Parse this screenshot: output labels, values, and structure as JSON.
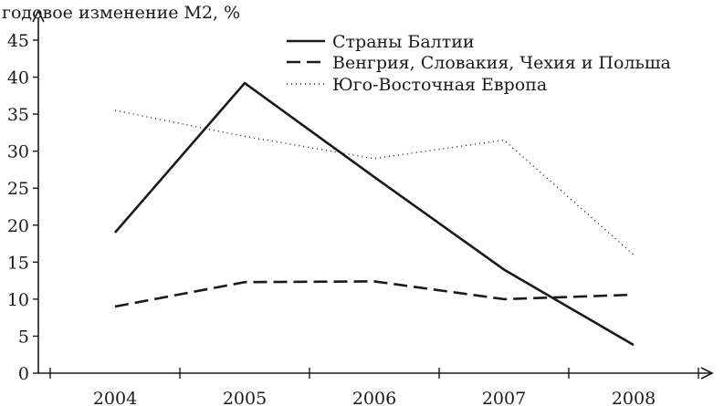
{
  "chart_data": {
    "type": "line",
    "ylabel": "годовое изменение М2, %",
    "xlabel": "",
    "categories": [
      "2004",
      "2005",
      "2006",
      "2007",
      "2008"
    ],
    "ylim": [
      0,
      45
    ],
    "yticks": [
      0,
      5,
      10,
      15,
      20,
      25,
      30,
      35,
      40,
      45
    ],
    "grid": false,
    "legend_position": "top-right",
    "series": [
      {
        "name": "Страны Балтии",
        "style": "solid",
        "color": "#1a1a1a",
        "values": [
          19,
          39.2,
          26.5,
          14,
          3.8
        ]
      },
      {
        "name": "Венгрия, Словакия, Чехия и Польша",
        "style": "dashed",
        "color": "#1a1a1a",
        "values": [
          9,
          12.3,
          12.4,
          10,
          10.6
        ]
      },
      {
        "name": "Юго-Восточная Европа",
        "style": "dotted",
        "color": "#1a1a1a",
        "values": [
          35.5,
          32,
          29,
          31.5,
          16
        ]
      }
    ]
  }
}
